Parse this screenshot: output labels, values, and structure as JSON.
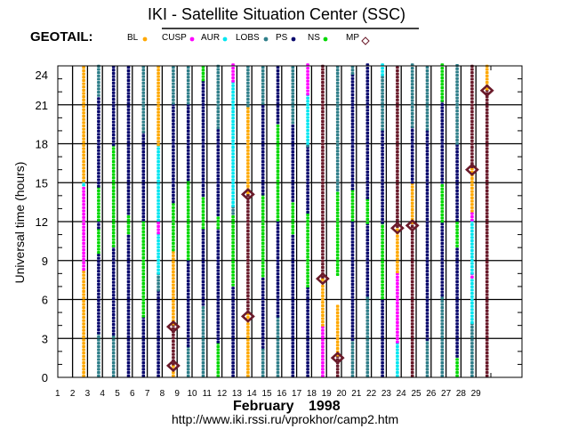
{
  "chart_data": {
    "type": "scatter",
    "title": "IKI - Satellite Situation Center (SSC)",
    "satellite": "GEOTAIL:",
    "ylabel": "Universal time (hours)",
    "xlabel_month": "February",
    "xlabel_year": "1998",
    "url": "http://www.iki.rssi.ru/vprokhor/camp2.htm",
    "ylim": [
      0,
      24
    ],
    "xlim": [
      1,
      32
    ],
    "yticks": [
      "0",
      "3",
      "6",
      "9",
      "12",
      "15",
      "18",
      "21",
      "24"
    ],
    "xticks": [
      "1",
      "2",
      "3",
      "4",
      "5",
      "6",
      "7",
      "8",
      "9",
      "10",
      "11",
      "12",
      "13",
      "14",
      "15",
      "16",
      "17",
      "18",
      "19",
      "20",
      "21",
      "22",
      "23",
      "24",
      "25",
      "26",
      "27",
      "28",
      "29"
    ],
    "legend": [
      {
        "label": "BL",
        "code": "BL"
      },
      {
        "label": "CUSP",
        "code": "CUSP"
      },
      {
        "label": "AUR",
        "code": "AUR"
      },
      {
        "label": "LOBS",
        "code": "LOBS"
      },
      {
        "label": "PS",
        "code": "PS"
      },
      {
        "label": "NS",
        "code": "NS"
      },
      {
        "label": "MP",
        "code": "MP"
      }
    ],
    "region_colors": {
      "BL": "#ffa800",
      "CUSP": "#ff00ff",
      "AUR": "#00e6f0",
      "LOBS": "#2f7f8a",
      "PS": "#0a0a6e",
      "NS": "#00d800",
      "SW": "#6a1a2a",
      "MP": "#6a1a2a"
    },
    "days": [
      {
        "day": 2,
        "segments": [
          [
            0,
            8.2,
            "BL"
          ],
          [
            8.2,
            14.7,
            "CUSP"
          ],
          [
            14.7,
            15,
            "AUR"
          ],
          [
            15,
            24,
            "BL"
          ]
        ]
      },
      {
        "day": 3,
        "segments": [
          [
            0,
            3.3,
            "LOBS"
          ],
          [
            3.3,
            9.5,
            "PS"
          ],
          [
            9.5,
            11.4,
            "NS"
          ],
          [
            11.4,
            12,
            "PS"
          ],
          [
            12,
            14.6,
            "NS"
          ],
          [
            14.6,
            21.6,
            "PS"
          ],
          [
            21.6,
            24,
            "LOBS"
          ]
        ]
      },
      {
        "day": 4,
        "segments": [
          [
            0,
            3.2,
            "LOBS"
          ],
          [
            3.2,
            10,
            "PS"
          ],
          [
            10,
            17.8,
            "NS"
          ],
          [
            17.8,
            24,
            "PS"
          ]
        ]
      },
      {
        "day": 5,
        "segments": [
          [
            0,
            11,
            "PS"
          ],
          [
            11,
            12.5,
            "NS"
          ],
          [
            12.5,
            24,
            "PS"
          ]
        ]
      },
      {
        "day": 6,
        "segments": [
          [
            0,
            4.6,
            "PS"
          ],
          [
            4.6,
            12,
            "NS"
          ],
          [
            12,
            18.8,
            "PS"
          ],
          [
            18.8,
            24,
            "LOBS"
          ]
        ]
      },
      {
        "day": 7,
        "segments": [
          [
            0,
            6.6,
            "PS"
          ],
          [
            6.6,
            7.9,
            "LOBS"
          ],
          [
            7.9,
            11,
            "AUR"
          ],
          [
            11,
            12,
            "CUSP"
          ],
          [
            12,
            17.8,
            "AUR"
          ],
          [
            17.8,
            24,
            "BL"
          ]
        ]
      },
      {
        "day": 8,
        "segments": [
          [
            0,
            0.9,
            "BL"
          ],
          [
            0.9,
            4,
            "SW"
          ],
          [
            4,
            9.7,
            "BL"
          ],
          [
            9.7,
            13.4,
            "NS"
          ],
          [
            13.4,
            21,
            "PS"
          ],
          [
            21,
            24,
            "LOBS"
          ]
        ]
      },
      {
        "day": 9,
        "segments": [
          [
            0,
            2.3,
            "LOBS"
          ],
          [
            2.3,
            9,
            "PS"
          ],
          [
            9,
            15.1,
            "NS"
          ],
          [
            15.1,
            21,
            "PS"
          ],
          [
            21,
            24,
            "LOBS"
          ]
        ]
      },
      {
        "day": 10,
        "segments": [
          [
            0,
            5.5,
            "LOBS"
          ],
          [
            5.5,
            11.4,
            "PS"
          ],
          [
            11.4,
            13.9,
            "NS"
          ],
          [
            13.9,
            22.8,
            "PS"
          ],
          [
            22.8,
            24,
            "NS"
          ]
        ]
      },
      {
        "day": 11,
        "segments": [
          [
            0,
            2.6,
            "NS"
          ],
          [
            2.6,
            11.4,
            "PS"
          ],
          [
            11.4,
            12.4,
            "NS"
          ],
          [
            12.4,
            19.1,
            "PS"
          ],
          [
            19.1,
            24,
            "LOBS"
          ]
        ]
      },
      {
        "day": 12,
        "segments": [
          [
            0,
            7,
            "PS"
          ],
          [
            7,
            12.5,
            "NS"
          ],
          [
            12.5,
            13.1,
            "LOBS"
          ],
          [
            13.1,
            22.7,
            "AUR"
          ],
          [
            22.7,
            24,
            "CUSP"
          ]
        ]
      },
      {
        "day": 13,
        "segments": [
          [
            0,
            4.9,
            "BL"
          ],
          [
            4.9,
            14.1,
            "SW"
          ],
          [
            14.1,
            20.8,
            "BL"
          ],
          [
            20.8,
            24,
            "LOBS"
          ]
        ]
      },
      {
        "day": 14,
        "segments": [
          [
            0,
            2.2,
            "LOBS"
          ],
          [
            2.2,
            7.7,
            "PS"
          ],
          [
            7.7,
            14,
            "NS"
          ],
          [
            14,
            21,
            "PS"
          ],
          [
            21,
            24,
            "LOBS"
          ]
        ]
      },
      {
        "day": 15,
        "segments": [
          [
            0,
            4.6,
            "LOBS"
          ],
          [
            4.6,
            12,
            "PS"
          ],
          [
            12,
            19.5,
            "NS"
          ],
          [
            19.5,
            24,
            "PS"
          ]
        ]
      },
      {
        "day": 16,
        "segments": [
          [
            0,
            11,
            "PS"
          ],
          [
            11,
            13.5,
            "NS"
          ],
          [
            13.5,
            19.5,
            "PS"
          ],
          [
            19.5,
            24,
            "LOBS"
          ]
        ]
      },
      {
        "day": 17,
        "segments": [
          [
            0,
            6.9,
            "PS"
          ],
          [
            6.9,
            12.6,
            "NS"
          ],
          [
            12.6,
            17.7,
            "PS"
          ],
          [
            17.7,
            17.9,
            "LOBS"
          ],
          [
            17.9,
            21.7,
            "AUR"
          ],
          [
            21.7,
            24,
            "CUSP"
          ]
        ]
      },
      {
        "day": 18,
        "segments": [
          [
            0,
            3.9,
            "CUSP"
          ],
          [
            3.9,
            7.6,
            "BL"
          ],
          [
            7.6,
            24,
            "SW"
          ]
        ]
      },
      {
        "day": 19,
        "segments": [
          [
            0,
            1.6,
            "SW"
          ],
          [
            1.6,
            5.6,
            "BL"
          ],
          [
            7.8,
            14.3,
            "NS"
          ],
          [
            14.3,
            24,
            "LOBS"
          ]
        ]
      },
      {
        "day": 20,
        "segments": [
          [
            0,
            2.8,
            "LOBS"
          ],
          [
            2.8,
            12,
            "PS"
          ],
          [
            12,
            14.4,
            "NS"
          ],
          [
            14.4,
            23.3,
            "PS"
          ],
          [
            23.3,
            24,
            "LOBS"
          ]
        ]
      },
      {
        "day": 21,
        "segments": [
          [
            0,
            6.2,
            "LOBS"
          ],
          [
            6.2,
            11.8,
            "PS"
          ],
          [
            11.8,
            13.7,
            "NS"
          ],
          [
            13.7,
            24,
            "PS"
          ]
        ]
      },
      {
        "day": 22,
        "segments": [
          [
            0,
            6,
            "PS"
          ],
          [
            6,
            11.8,
            "NS"
          ],
          [
            11.8,
            19,
            "PS"
          ],
          [
            19,
            23.2,
            "LOBS"
          ],
          [
            23.2,
            24,
            "AUR"
          ]
        ]
      },
      {
        "day": 23,
        "segments": [
          [
            0,
            2.6,
            "AUR"
          ],
          [
            2.6,
            8,
            "CUSP"
          ],
          [
            8,
            11.5,
            "BL"
          ],
          [
            11.5,
            24,
            "SW"
          ]
        ]
      },
      {
        "day": 24,
        "segments": [
          [
            0,
            11.8,
            "SW"
          ],
          [
            11.8,
            14.9,
            "BL"
          ],
          [
            14.9,
            19.2,
            "PS"
          ],
          [
            19.2,
            24,
            "LOBS"
          ]
        ]
      },
      {
        "day": 25,
        "segments": [
          [
            0,
            2.8,
            "LOBS"
          ],
          [
            2.8,
            19,
            "PS"
          ],
          [
            19,
            24,
            "LOBS"
          ]
        ]
      },
      {
        "day": 26,
        "segments": [
          [
            0,
            6.2,
            "LOBS"
          ],
          [
            6.2,
            11.9,
            "PS"
          ],
          [
            11.9,
            14.9,
            "NS"
          ],
          [
            14.9,
            21.2,
            "PS"
          ],
          [
            21.2,
            24,
            "NS"
          ]
        ]
      },
      {
        "day": 27,
        "segments": [
          [
            0,
            1.5,
            "NS"
          ],
          [
            1.5,
            10,
            "PS"
          ],
          [
            10,
            12,
            "NS"
          ],
          [
            12,
            17.9,
            "PS"
          ],
          [
            17.9,
            24,
            "LOBS"
          ]
        ]
      },
      {
        "day": 28,
        "segments": [
          [
            0,
            4.1,
            "LOBS"
          ],
          [
            4.1,
            7.6,
            "AUR"
          ],
          [
            7.6,
            7.9,
            "CUSP"
          ],
          [
            7.9,
            12,
            "AUR"
          ],
          [
            12,
            12.7,
            "CUSP"
          ],
          [
            12.7,
            16.1,
            "BL"
          ],
          [
            16.1,
            24,
            "SW"
          ]
        ]
      },
      {
        "day": 29,
        "segments": [
          [
            0,
            22.1,
            "SW"
          ],
          [
            22.1,
            24,
            "BL"
          ]
        ]
      }
    ],
    "mp_crossings": [
      [
        8,
        0.9
      ],
      [
        8,
        3.9
      ],
      [
        13,
        4.7
      ],
      [
        13,
        14.1
      ],
      [
        18,
        7.6
      ],
      [
        19,
        1.5
      ],
      [
        23,
        11.5
      ],
      [
        24,
        11.7
      ],
      [
        28,
        16.0
      ],
      [
        29,
        22.1
      ]
    ]
  }
}
